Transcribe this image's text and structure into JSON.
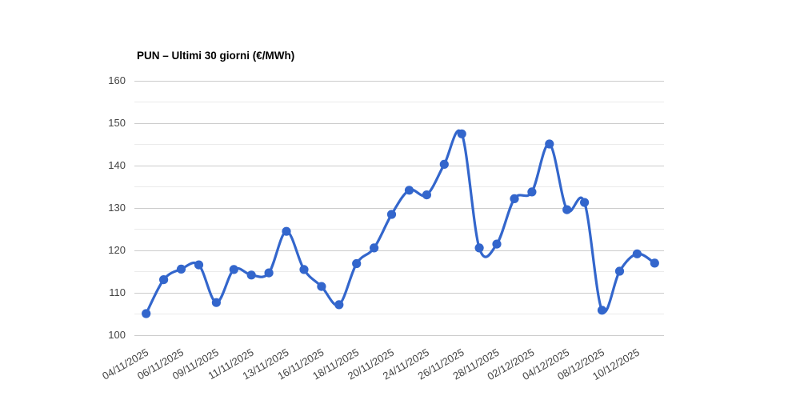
{
  "chart_data": {
    "type": "line",
    "title": "PUN – Ultimi 30 giorni (€/MWh)",
    "xlabel": "",
    "ylabel": "",
    "ylim": [
      100,
      160
    ],
    "yticks": [
      100,
      110,
      120,
      130,
      140,
      150,
      160
    ],
    "minor_yticks": [
      105,
      115,
      125,
      135,
      145,
      155
    ],
    "grid": "horizontal-only",
    "legend_position": "none",
    "curve": "smooth",
    "x_tick_indices": [
      0,
      2,
      4,
      6,
      8,
      10,
      12,
      14,
      16,
      18,
      20,
      22,
      24,
      26,
      28
    ],
    "x_tick_labels": [
      "04/11/2025",
      "06/11/2025",
      "09/11/2025",
      "11/11/2025",
      "13/11/2025",
      "16/11/2025",
      "18/11/2025",
      "20/11/2025",
      "24/11/2025",
      "26/11/2025",
      "28/11/2025",
      "02/12/2025",
      "04/12/2025",
      "08/12/2025",
      "10/12/2025"
    ],
    "series": [
      {
        "name": "PUN",
        "color": "#3366cc",
        "values": [
          105.0,
          113.0,
          115.5,
          116.5,
          107.6,
          115.4,
          114.1,
          114.6,
          124.4,
          115.4,
          111.4,
          107.1,
          116.8,
          120.5,
          128.4,
          134.1,
          133.0,
          140.2,
          147.4,
          120.5,
          121.4,
          132.1,
          133.7,
          145.0,
          129.5,
          131.2,
          105.8,
          115.0,
          119.1,
          116.9
        ]
      }
    ],
    "colors": {
      "major_gridline": "#cccccc",
      "minor_gridline": "#ebebeb",
      "axis_label": "#444444",
      "title": "#000000",
      "background": "#ffffff"
    }
  }
}
